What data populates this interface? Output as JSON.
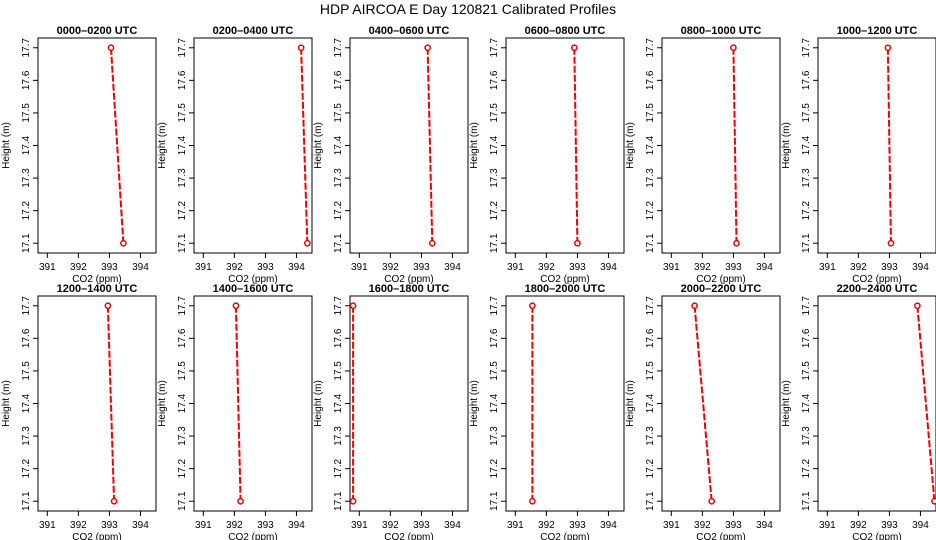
{
  "title": "HDP AIRCOA E  Day 120821  Calibrated Profiles",
  "colors": {
    "series": "#ee0000",
    "frame": "#000000",
    "background": "#ffffff"
  },
  "chart_data": {
    "type": "line",
    "layout": "grid 2 rows x 6 columns",
    "xlabel": "CO2 (ppm)",
    "ylabel": "Height (m)",
    "xlim": [
      390.7,
      394.5
    ],
    "ylim": [
      17.07,
      17.73
    ],
    "xticks": [
      391,
      392,
      393,
      394
    ],
    "yticks": [
      17.1,
      17.2,
      17.3,
      17.4,
      17.5,
      17.6,
      17.7
    ],
    "grid": false,
    "line_style": "dashed, open circle markers at each level",
    "panels": [
      {
        "title": "0000–0200 UTC",
        "points": [
          {
            "x": 393.05,
            "y": 17.7
          },
          {
            "x": 393.45,
            "y": 17.1
          }
        ]
      },
      {
        "title": "0200–0400 UTC",
        "points": [
          {
            "x": 394.15,
            "y": 17.7
          },
          {
            "x": 394.35,
            "y": 17.1
          }
        ]
      },
      {
        "title": "0400–0600 UTC",
        "points": [
          {
            "x": 393.2,
            "y": 17.7
          },
          {
            "x": 393.35,
            "y": 17.1
          }
        ]
      },
      {
        "title": "0600–0800 UTC",
        "points": [
          {
            "x": 392.9,
            "y": 17.7
          },
          {
            "x": 393.0,
            "y": 17.1
          }
        ]
      },
      {
        "title": "0800–1000 UTC",
        "points": [
          {
            "x": 393.0,
            "y": 17.7
          },
          {
            "x": 393.1,
            "y": 17.1
          }
        ]
      },
      {
        "title": "1000–1200 UTC",
        "points": [
          {
            "x": 392.95,
            "y": 17.7
          },
          {
            "x": 393.05,
            "y": 17.1
          }
        ]
      },
      {
        "title": "1200–1400 UTC",
        "points": [
          {
            "x": 392.95,
            "y": 17.7
          },
          {
            "x": 393.15,
            "y": 17.1
          }
        ]
      },
      {
        "title": "1400–1600 UTC",
        "points": [
          {
            "x": 392.05,
            "y": 17.7
          },
          {
            "x": 392.2,
            "y": 17.1
          }
        ]
      },
      {
        "title": "1600–1800 UTC",
        "points": [
          {
            "x": 390.8,
            "y": 17.7
          },
          {
            "x": 390.8,
            "y": 17.1
          }
        ]
      },
      {
        "title": "1800–2000 UTC",
        "points": [
          {
            "x": 391.55,
            "y": 17.7
          },
          {
            "x": 391.55,
            "y": 17.1
          }
        ]
      },
      {
        "title": "2000–2200 UTC",
        "points": [
          {
            "x": 391.75,
            "y": 17.7
          },
          {
            "x": 392.3,
            "y": 17.1
          }
        ]
      },
      {
        "title": "2200–2400 UTC",
        "points": [
          {
            "x": 393.9,
            "y": 17.7
          },
          {
            "x": 394.45,
            "y": 17.1
          }
        ]
      }
    ]
  }
}
